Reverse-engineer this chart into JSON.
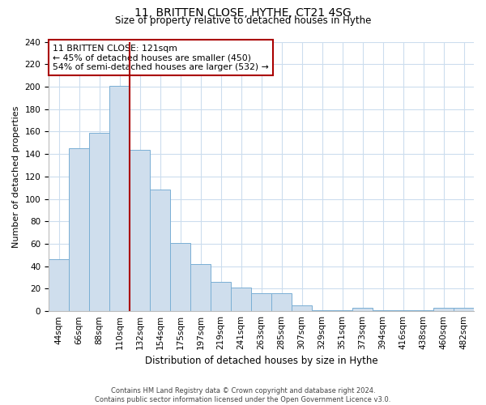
{
  "title": "11, BRITTEN CLOSE, HYTHE, CT21 4SG",
  "subtitle": "Size of property relative to detached houses in Hythe",
  "xlabel": "Distribution of detached houses by size in Hythe",
  "ylabel": "Number of detached properties",
  "bar_labels": [
    "44sqm",
    "66sqm",
    "88sqm",
    "110sqm",
    "132sqm",
    "154sqm",
    "175sqm",
    "197sqm",
    "219sqm",
    "241sqm",
    "263sqm",
    "285sqm",
    "307sqm",
    "329sqm",
    "351sqm",
    "373sqm",
    "394sqm",
    "416sqm",
    "438sqm",
    "460sqm",
    "482sqm"
  ],
  "bar_heights": [
    46,
    145,
    159,
    201,
    144,
    108,
    61,
    42,
    26,
    21,
    16,
    16,
    5,
    1,
    1,
    3,
    1,
    1,
    1,
    3,
    3
  ],
  "bar_color": "#cfdeed",
  "bar_edge_color": "#7aafd4",
  "annotation_box_text": "11 BRITTEN CLOSE: 121sqm\n← 45% of detached houses are smaller (450)\n54% of semi-detached houses are larger (532) →",
  "annotation_box_color": "#ffffff",
  "annotation_box_edge_color": "#aa0000",
  "vline_color": "#aa0000",
  "vline_bar_index": 3,
  "ylim": [
    0,
    240
  ],
  "yticks": [
    0,
    20,
    40,
    60,
    80,
    100,
    120,
    140,
    160,
    180,
    200,
    220,
    240
  ],
  "footer_line1": "Contains HM Land Registry data © Crown copyright and database right 2024.",
  "footer_line2": "Contains public sector information licensed under the Open Government Licence v3.0.",
  "background_color": "#ffffff",
  "grid_color": "#ccddee",
  "title_fontsize": 10,
  "subtitle_fontsize": 8.5,
  "tick_fontsize": 7.5,
  "ylabel_fontsize": 8,
  "xlabel_fontsize": 8.5
}
